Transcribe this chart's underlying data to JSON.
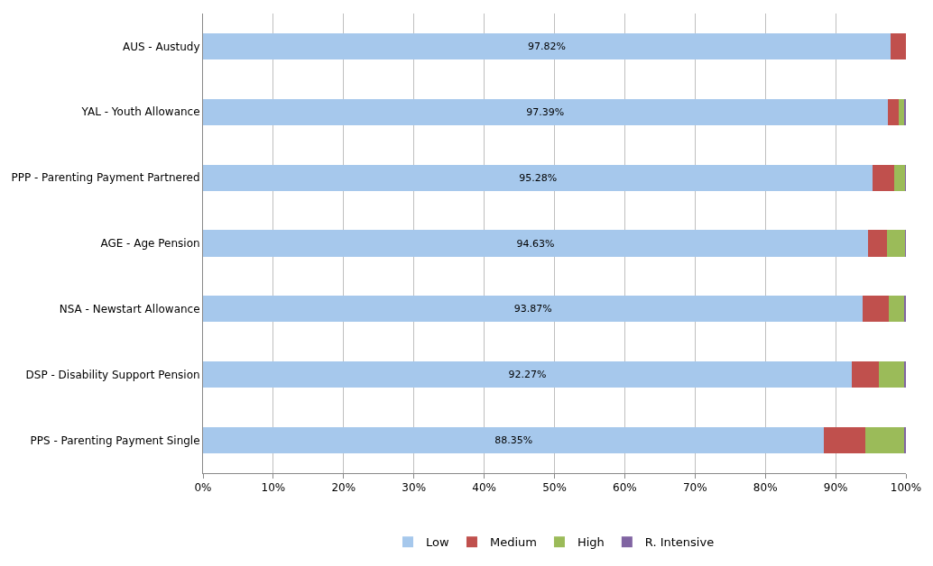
{
  "chart_data": {
    "type": "bar",
    "orientation": "horizontal",
    "stacked": true,
    "categories": [
      "AUS - Austudy",
      "YAL - Youth Allowance",
      "PPP - Parenting Payment Partnered",
      "AGE - Age Pension",
      "NSA - Newstart Allowance",
      "DSP - Disability Support Pension",
      "PPS - Parenting Payment Single"
    ],
    "series": [
      {
        "name": "Low",
        "color": "#a6c8ec",
        "values": [
          97.82,
          97.39,
          95.28,
          94.63,
          93.87,
          92.27,
          88.35
        ],
        "value_labels": [
          "97.82%",
          "97.39%",
          "95.28%",
          "94.63%",
          "93.87%",
          "92.27%",
          "88.35%"
        ]
      },
      {
        "name": "Medium",
        "color": "#c0504d",
        "values": [
          2.2,
          1.6,
          3.1,
          2.7,
          3.7,
          3.9,
          5.9
        ]
      },
      {
        "name": "High",
        "color": "#9bbb59",
        "values": [
          0,
          0.7,
          1.6,
          2.6,
          2.2,
          3.7,
          5.5
        ]
      },
      {
        "name": "R. Intensive",
        "color": "#8064a2",
        "values": [
          0,
          0.3,
          0.1,
          0.1,
          0.2,
          0.1,
          0.3
        ]
      }
    ],
    "xlim": [
      0,
      100
    ],
    "xticks": [
      {
        "value": 0,
        "label": "0%"
      },
      {
        "value": 10,
        "label": "10%"
      },
      {
        "value": 20,
        "label": "20%"
      },
      {
        "value": 30,
        "label": "30%"
      },
      {
        "value": 40,
        "label": "40%"
      },
      {
        "value": 50,
        "label": "50%"
      },
      {
        "value": 60,
        "label": "60%"
      },
      {
        "value": 70,
        "label": "70%"
      },
      {
        "value": 80,
        "label": "80%"
      },
      {
        "value": 90,
        "label": "90%"
      },
      {
        "value": 100,
        "label": "100%"
      }
    ],
    "grid": "x",
    "legend": "bottom"
  }
}
